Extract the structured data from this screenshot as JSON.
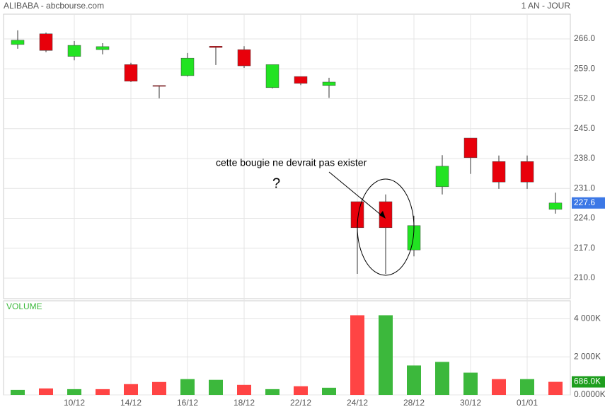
{
  "chart_data": [
    {
      "type": "candlestick",
      "title": "ALIBABA - abcbourse.com",
      "subtitle": "1 AN - JOUR",
      "categories": [
        null,
        null,
        "10/12",
        null,
        "14/12",
        null,
        "16/12",
        null,
        "18/12",
        null,
        "22/12",
        null,
        "24/12",
        null,
        "28/12",
        null,
        "30/12",
        null,
        "01/01",
        null
      ],
      "open": [
        264.7,
        267.2,
        261.9,
        263.5,
        260.0,
        255.1,
        257.4,
        264.3,
        263.5,
        254.6,
        257.2,
        255.1,
        227.9,
        227.9,
        216.6,
        231.4,
        242.8,
        237.3,
        237.3,
        226.1
      ],
      "high": [
        268.0,
        267.5,
        265.5,
        265.0,
        260.4,
        255.1,
        262.7,
        264.3,
        264.3,
        260.0,
        257.2,
        256.9,
        227.9,
        229.6,
        224.6,
        238.8,
        242.8,
        238.7,
        238.7,
        230.0
      ],
      "low": [
        263.7,
        262.9,
        261.0,
        262.4,
        255.9,
        252.1,
        257.2,
        259.9,
        259.2,
        254.4,
        255.2,
        252.2,
        211.0,
        211.0,
        215.1,
        229.6,
        234.4,
        230.9,
        230.9,
        225.1
      ],
      "close": [
        265.7,
        263.3,
        264.5,
        264.2,
        256.1,
        254.9,
        261.5,
        264.0,
        259.7,
        260.0,
        255.6,
        255.9,
        221.8,
        221.8,
        222.3,
        236.2,
        238.2,
        232.5,
        232.5,
        227.6
      ],
      "up_color": "#22e322",
      "down_color": "#e8000b",
      "last_value": {
        "value": 227.6,
        "label": "227.6"
      },
      "last_color": "#3c78e6",
      "ylim": [
        205.2,
        271.8
      ],
      "yticks": [
        {
          "value": 266,
          "label": "266.0"
        },
        {
          "value": 259,
          "label": "259.0"
        },
        {
          "value": 252,
          "label": "252.0"
        },
        {
          "value": 245,
          "label": "245.0"
        },
        {
          "value": 238,
          "label": "238.0"
        },
        {
          "value": 231,
          "label": "231.0"
        },
        {
          "value": 224,
          "label": "224.0"
        },
        {
          "value": 217,
          "label": "217.0"
        },
        {
          "value": 210,
          "label": "210.0"
        }
      ],
      "grid": true,
      "annotations": [
        "cette bougie ne devrait pas exister",
        "?"
      ]
    },
    {
      "type": "bar",
      "title": "VOLUME",
      "values": [
        264,
        340,
        302,
        302,
        566,
        679,
        830,
        792,
        528,
        302,
        453,
        377,
        4189,
        4189,
        1547,
        1736,
        1170,
        830,
        830,
        686
      ],
      "colors": [
        "#3cb83c",
        "#ff4444",
        "#3cb83c",
        "#ff4444",
        "#ff4444",
        "#ff4444",
        "#3cb83c",
        "#3cb83c",
        "#ff4444",
        "#3cb83c",
        "#ff4444",
        "#3cb83c",
        "#ff4444",
        "#3cb83c",
        "#3cb83c",
        "#3cb83c",
        "#3cb83c",
        "#ff4444",
        "#3cb83c",
        "#ff4444"
      ],
      "last_value": {
        "value": 686,
        "label": "686.0K"
      },
      "last_color": "#1e9e1e",
      "ylim": [
        0,
        4950
      ],
      "yticks": [
        {
          "value": 4000,
          "label": "4 000K"
        },
        {
          "value": 2000,
          "label": "2 000K"
        },
        {
          "value": 0,
          "label": "0.0000K"
        }
      ],
      "grid": true
    }
  ]
}
